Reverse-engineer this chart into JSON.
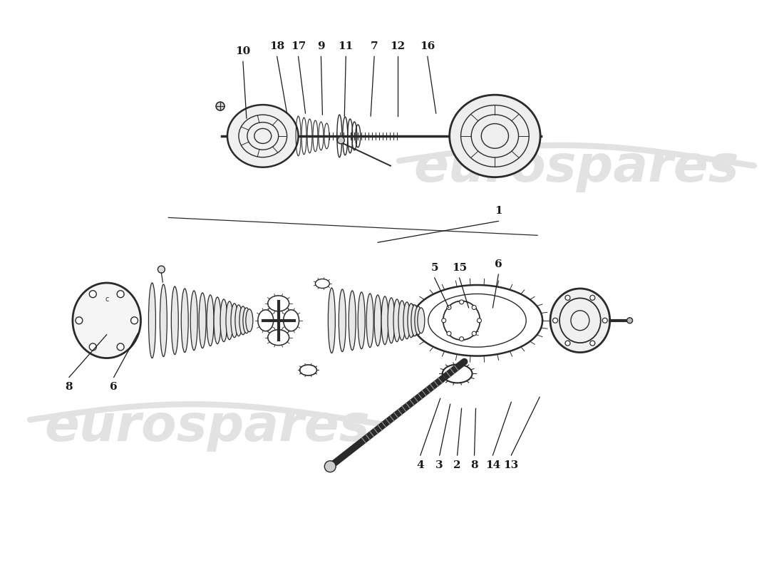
{
  "bg_color": "#ffffff",
  "watermark_text": "eurospares",
  "watermark_color": "#e2e2e2",
  "line_color": "#1a1a1a",
  "drawing_color": "#2a2a2a",
  "upper_callouts": [
    [
      "10",
      340,
      85,
      345,
      165
    ],
    [
      "18",
      388,
      78,
      402,
      158
    ],
    [
      "17",
      418,
      78,
      428,
      158
    ],
    [
      "9",
      450,
      78,
      452,
      160
    ],
    [
      "11",
      485,
      78,
      483,
      162
    ],
    [
      "7",
      525,
      78,
      520,
      162
    ],
    [
      "12",
      558,
      78,
      558,
      162
    ],
    [
      "16",
      600,
      78,
      612,
      158
    ]
  ],
  "lower_callouts": [
    [
      "8",
      95,
      530,
      148,
      470
    ],
    [
      "6",
      158,
      530,
      192,
      468
    ],
    [
      "1",
      700,
      310,
      530,
      340
    ],
    [
      "5",
      610,
      390,
      630,
      432
    ],
    [
      "15",
      645,
      390,
      658,
      432
    ],
    [
      "6",
      700,
      385,
      692,
      432
    ],
    [
      "4",
      590,
      640,
      618,
      560
    ],
    [
      "3",
      617,
      640,
      632,
      568
    ],
    [
      "2",
      642,
      640,
      648,
      574
    ],
    [
      "8",
      666,
      640,
      668,
      574
    ],
    [
      "14",
      692,
      640,
      718,
      565
    ],
    [
      "13",
      718,
      640,
      758,
      558
    ]
  ]
}
